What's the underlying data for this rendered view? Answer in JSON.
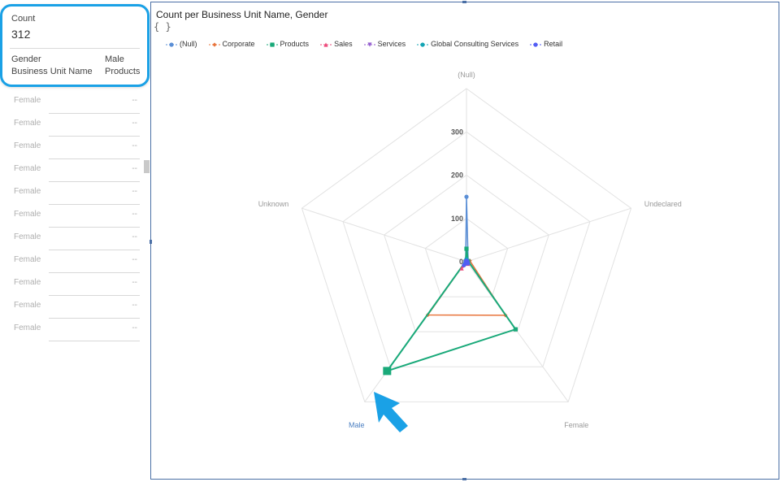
{
  "list": {
    "rows": [
      {
        "label": "Female",
        "value": "--"
      },
      {
        "label": "Female",
        "value": "--"
      },
      {
        "label": "Female",
        "value": "--"
      },
      {
        "label": "Female",
        "value": "--"
      },
      {
        "label": "Female",
        "value": "--"
      },
      {
        "label": "Female",
        "value": "--"
      },
      {
        "label": "Female",
        "value": "--"
      },
      {
        "label": "Female",
        "value": "--"
      },
      {
        "label": "Female",
        "value": "--"
      },
      {
        "label": "Female",
        "value": "--"
      },
      {
        "label": "Female",
        "value": "--"
      }
    ]
  },
  "tooltip": {
    "count_label": "Count",
    "count_value": "312",
    "gender_key": "Gender",
    "gender_value": "Male",
    "bu_key": "Business Unit Name",
    "bu_value": "Products",
    "border_color": "#1aa1e6"
  },
  "chart": {
    "title": "Count per Business Unit Name, Gender",
    "subtitle": "{ }",
    "legend": [
      {
        "name": "(Null)",
        "color": "#5b8fd6",
        "marker": "circle"
      },
      {
        "name": "Corporate",
        "color": "#e8743b",
        "marker": "diamond"
      },
      {
        "name": "Products",
        "color": "#19a979",
        "marker": "square"
      },
      {
        "name": "Sales",
        "color": "#ed4a7b",
        "marker": "triangle-up"
      },
      {
        "name": "Services",
        "color": "#945ecf",
        "marker": "triangle-down"
      },
      {
        "name": "Global Consulting Services",
        "color": "#13a4b4",
        "marker": "circle"
      },
      {
        "name": "Retail",
        "color": "#525df4",
        "marker": "circle"
      }
    ]
  },
  "chart_data": {
    "type": "radar",
    "title": "Count per Business Unit Name, Gender",
    "axes": [
      "(Null)",
      "Undeclared",
      "Female",
      "Male",
      "Unknown"
    ],
    "highlighted_axis": "Male",
    "radial_ticks": [
      0,
      100,
      200,
      300
    ],
    "rmax": 400,
    "series": [
      {
        "name": "(Null)",
        "color": "#5b8fd6",
        "values": [
          150,
          4,
          3,
          6,
          2
        ]
      },
      {
        "name": "Corporate",
        "color": "#e8743b",
        "values": [
          5,
          8,
          153,
          152,
          2
        ]
      },
      {
        "name": "Products",
        "color": "#19a979",
        "values": [
          30,
          4,
          193,
          312,
          2
        ]
      },
      {
        "name": "Sales",
        "color": "#ed4a7b",
        "values": [
          3,
          2,
          6,
          19,
          2
        ]
      },
      {
        "name": "Services",
        "color": "#945ecf",
        "values": [
          4,
          2,
          5,
          8,
          2
        ]
      },
      {
        "name": "Global Consulting Services",
        "color": "#13a4b4",
        "values": [
          6,
          2,
          4,
          6,
          1
        ]
      },
      {
        "name": "Retail",
        "color": "#525df4",
        "values": [
          2,
          2,
          5,
          10,
          2
        ]
      }
    ]
  },
  "pointer": {
    "color": "#1aa1e6",
    "icon": "cursor-arrow-icon"
  }
}
